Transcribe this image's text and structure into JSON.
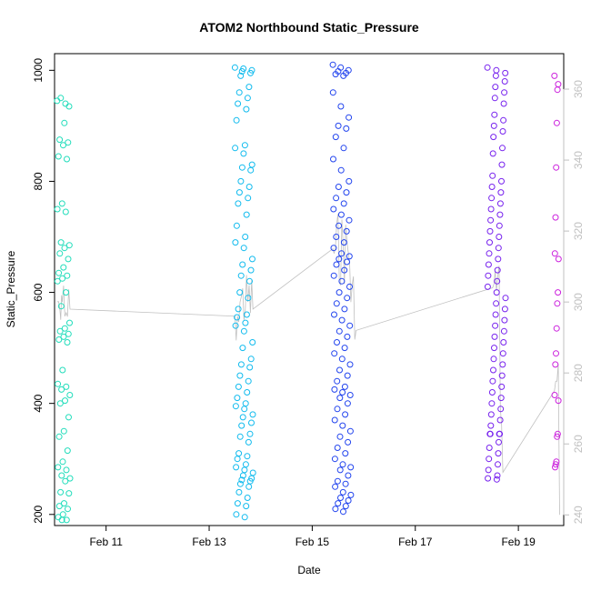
{
  "chart_data": {
    "type": "scatter",
    "title": "ATOM2 Northbound Static_Pressure",
    "xlabel": "Date",
    "ylabel": "Static_Pressure",
    "x_unit": "days in February (day 10.0 = Feb 10 00:00)",
    "xlim": [
      10.0,
      19.88
    ],
    "ylim": [
      180,
      1030
    ],
    "y2lim": [
      237,
      370
    ],
    "x_ticks": [
      {
        "day": 11,
        "label": "Feb 11"
      },
      {
        "day": 13,
        "label": "Feb 13"
      },
      {
        "day": 15,
        "label": "Feb 15"
      },
      {
        "day": 17,
        "label": "Feb 17"
      },
      {
        "day": 19,
        "label": "Feb 19"
      }
    ],
    "y_ticks": [
      200,
      400,
      600,
      800,
      1000
    ],
    "y2_ticks": [
      240,
      260,
      280,
      300,
      320,
      340,
      360
    ],
    "grid": false,
    "legend": "none",
    "colors": {
      "seg1": "#22ddbb",
      "seg2": "#11bbee",
      "seg3": "#2244ee",
      "seg4": "#7722ee",
      "seg5": "#cc22dd",
      "line": "#c0c0c0"
    },
    "series": [
      {
        "color": "#22ddbb",
        "x_range": [
          10.05,
          10.3
        ],
        "y": [
          945,
          940,
          950,
          935,
          905,
          875,
          870,
          865,
          845,
          840,
          760,
          750,
          745,
          690,
          685,
          680,
          670,
          660,
          645,
          635,
          630,
          625,
          620,
          600,
          575,
          545,
          535,
          530,
          525,
          520,
          515,
          510,
          460,
          435,
          430,
          425,
          415,
          405,
          400,
          375,
          350,
          340,
          315,
          295,
          285,
          280,
          270,
          265,
          260,
          240,
          238,
          220,
          215,
          210,
          200,
          195,
          190,
          190
        ]
      },
      {
        "color": "#11bbee",
        "x_range": [
          13.5,
          13.85
        ],
        "y": [
          1005,
          1003,
          1000,
          998,
          995,
          990,
          970,
          960,
          950,
          940,
          930,
          910,
          865,
          860,
          850,
          830,
          825,
          820,
          800,
          790,
          780,
          770,
          760,
          740,
          720,
          700,
          690,
          680,
          660,
          650,
          640,
          630,
          620,
          600,
          590,
          570,
          560,
          555,
          545,
          540,
          530,
          510,
          500,
          480,
          470,
          465,
          450,
          440,
          430,
          420,
          410,
          400,
          395,
          390,
          380,
          375,
          365,
          360,
          345,
          340,
          330,
          310,
          305,
          300,
          290,
          285,
          280,
          275,
          270,
          265,
          262,
          260,
          255,
          250,
          240,
          230,
          220,
          215,
          200,
          195
        ]
      },
      {
        "color": "#2244ee",
        "x_range": [
          15.4,
          15.75
        ],
        "y": [
          1010,
          1005,
          1000,
          998,
          995,
          993,
          990,
          960,
          935,
          915,
          900,
          895,
          880,
          860,
          840,
          820,
          800,
          790,
          780,
          770,
          760,
          750,
          740,
          730,
          720,
          710,
          700,
          690,
          680,
          670,
          665,
          660,
          655,
          650,
          640,
          630,
          620,
          610,
          600,
          590,
          580,
          570,
          560,
          550,
          540,
          530,
          520,
          510,
          500,
          490,
          480,
          470,
          460,
          450,
          440,
          430,
          425,
          420,
          415,
          410,
          400,
          390,
          380,
          370,
          360,
          350,
          340,
          330,
          320,
          310,
          300,
          290,
          285,
          280,
          270,
          260,
          255,
          250,
          240,
          235,
          230,
          225,
          220,
          215,
          210,
          205
        ]
      },
      {
        "color": "#7722ee",
        "x_range": [
          18.4,
          18.75
        ],
        "y": [
          1005,
          1000,
          995,
          990,
          980,
          970,
          960,
          950,
          940,
          920,
          910,
          900,
          890,
          880,
          860,
          850,
          830,
          810,
          800,
          790,
          780,
          770,
          760,
          750,
          740,
          730,
          720,
          710,
          700,
          690,
          680,
          670,
          660,
          650,
          640,
          630,
          620,
          610,
          600,
          590,
          580,
          570,
          560,
          550,
          540,
          530,
          520,
          510,
          500,
          490,
          480,
          470,
          460,
          450,
          440,
          430,
          420,
          410,
          400,
          390,
          380,
          370,
          360,
          345,
          345,
          345,
          345,
          330,
          320,
          310,
          300,
          290,
          280,
          270,
          265,
          263
        ]
      },
      {
        "color": "#cc22dd",
        "x_range": [
          19.7,
          19.78
        ],
        "y": [
          990,
          975,
          965,
          905,
          825,
          735,
          670,
          660,
          600,
          580,
          535,
          490,
          470,
          415,
          405,
          345,
          340,
          295,
          290,
          285
        ]
      }
    ],
    "line": {
      "color": "#c0c0c0",
      "y2_points": [
        [
          10.05,
          300
        ],
        [
          10.12,
          295
        ],
        [
          10.15,
          300
        ],
        [
          10.2,
          296
        ],
        [
          10.3,
          298
        ],
        [
          13.5,
          296
        ],
        [
          13.55,
          296
        ],
        [
          13.6,
          300
        ],
        [
          13.85,
          298
        ],
        [
          15.4,
          315
        ],
        [
          15.75,
          300
        ],
        [
          15.85,
          292
        ],
        [
          18.5,
          304
        ],
        [
          18.65,
          270
        ],
        [
          18.7,
          252
        ],
        [
          19.7,
          275
        ],
        [
          19.8,
          240
        ]
      ]
    }
  }
}
